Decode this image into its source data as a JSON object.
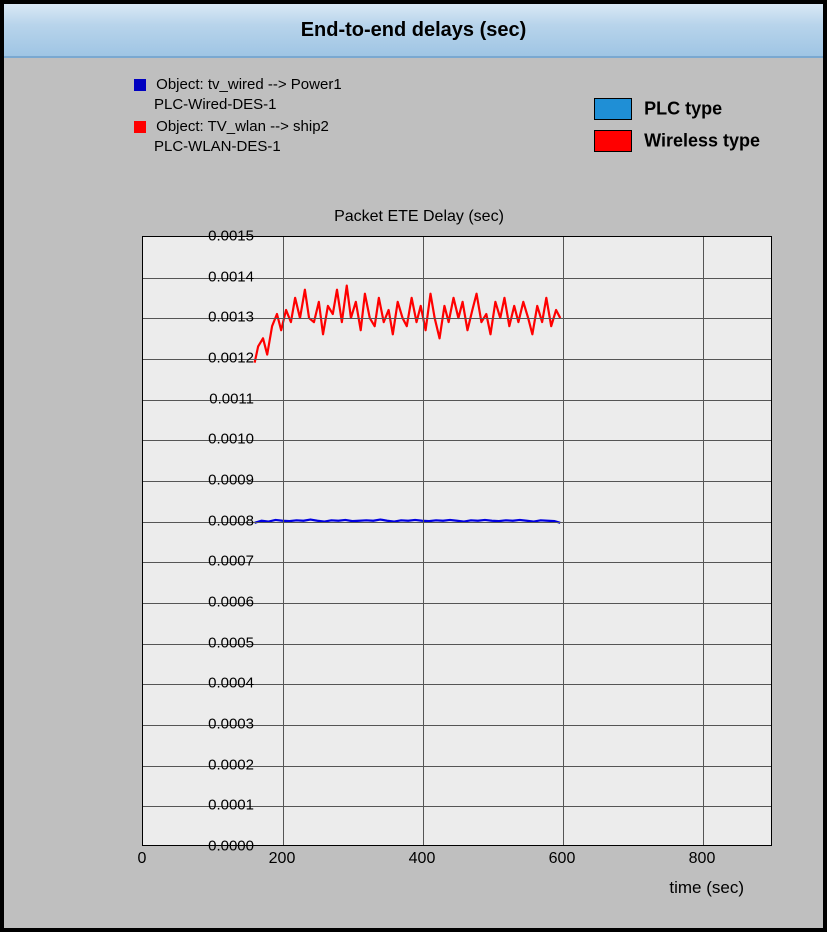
{
  "header": {
    "title": "End-to-end delays (sec)"
  },
  "legend": {
    "items": [
      {
        "marker_color": "#0000c0",
        "line1": "Object: tv_wired --> Power1",
        "line2": "PLC-Wired-DES-1"
      },
      {
        "marker_color": "#ff0000",
        "line1": "Object: TV_wlan --> ship2",
        "line2": "PLC-WLAN-DES-1"
      }
    ],
    "boxes": [
      {
        "color": "#1f8fd6",
        "label": "PLC type"
      },
      {
        "color": "#ff0000",
        "label": "Wireless type"
      }
    ]
  },
  "chart": {
    "title": "Packet ETE Delay (sec)",
    "x_axis_title": "time (sec)",
    "type": "line",
    "background_color": "#ececec",
    "grid_color": "#555555",
    "frame_bg": "#bfbfbf",
    "ylim": [
      0.0,
      0.0015
    ],
    "xlim": [
      0,
      900
    ],
    "yticks": [
      "0.0000",
      "0.0001",
      "0.0002",
      "0.0003",
      "0.0004",
      "0.0005",
      "0.0006",
      "0.0007",
      "0.0008",
      "0.0009",
      "0.0010",
      "0.0011",
      "0.0012",
      "0.0013",
      "0.0014",
      "0.0015"
    ],
    "xticks": [
      0,
      200,
      400,
      600,
      800
    ],
    "line_width": 2.2,
    "series": [
      {
        "name": "PLC-Wired-DES-1",
        "color": "#0000e0",
        "points": [
          [
            160,
            0.000795
          ],
          [
            170,
            0.0008
          ],
          [
            180,
            0.000798
          ],
          [
            190,
            0.000802
          ],
          [
            200,
            0.0008
          ],
          [
            210,
            0.000799
          ],
          [
            220,
            0.000801
          ],
          [
            230,
            0.0008
          ],
          [
            240,
            0.000803
          ],
          [
            250,
            0.0008
          ],
          [
            260,
            0.000798
          ],
          [
            270,
            0.000801
          ],
          [
            280,
            0.0008
          ],
          [
            290,
            0.000802
          ],
          [
            300,
            0.000799
          ],
          [
            310,
            0.0008
          ],
          [
            320,
            0.000801
          ],
          [
            330,
            0.0008
          ],
          [
            340,
            0.000803
          ],
          [
            350,
            0.0008
          ],
          [
            360,
            0.000798
          ],
          [
            370,
            0.000801
          ],
          [
            380,
            0.0008
          ],
          [
            390,
            0.000802
          ],
          [
            400,
            0.0008
          ],
          [
            410,
            0.000799
          ],
          [
            420,
            0.000801
          ],
          [
            430,
            0.0008
          ],
          [
            440,
            0.000802
          ],
          [
            450,
            0.0008
          ],
          [
            460,
            0.000798
          ],
          [
            470,
            0.000801
          ],
          [
            480,
            0.0008
          ],
          [
            490,
            0.000802
          ],
          [
            500,
            0.0008
          ],
          [
            510,
            0.000799
          ],
          [
            520,
            0.000801
          ],
          [
            530,
            0.0008
          ],
          [
            540,
            0.000802
          ],
          [
            550,
            0.0008
          ],
          [
            560,
            0.000798
          ],
          [
            570,
            0.000801
          ],
          [
            580,
            0.0008
          ],
          [
            590,
            0.000799
          ],
          [
            598,
            0.000795
          ]
        ]
      },
      {
        "name": "PLC-WLAN-DES-1",
        "color": "#ff0000",
        "points": [
          [
            160,
            0.00119
          ],
          [
            165,
            0.00123
          ],
          [
            172,
            0.00125
          ],
          [
            178,
            0.00121
          ],
          [
            185,
            0.00128
          ],
          [
            192,
            0.00131
          ],
          [
            198,
            0.00127
          ],
          [
            205,
            0.00132
          ],
          [
            212,
            0.00129
          ],
          [
            218,
            0.00135
          ],
          [
            225,
            0.0013
          ],
          [
            232,
            0.00137
          ],
          [
            238,
            0.0013
          ],
          [
            245,
            0.00129
          ],
          [
            252,
            0.00134
          ],
          [
            258,
            0.00126
          ],
          [
            265,
            0.00133
          ],
          [
            272,
            0.00131
          ],
          [
            278,
            0.00137
          ],
          [
            285,
            0.00129
          ],
          [
            292,
            0.00138
          ],
          [
            298,
            0.0013
          ],
          [
            305,
            0.00134
          ],
          [
            312,
            0.00127
          ],
          [
            318,
            0.00136
          ],
          [
            325,
            0.0013
          ],
          [
            332,
            0.00128
          ],
          [
            338,
            0.00135
          ],
          [
            345,
            0.00129
          ],
          [
            352,
            0.00132
          ],
          [
            358,
            0.00126
          ],
          [
            365,
            0.00134
          ],
          [
            372,
            0.0013
          ],
          [
            378,
            0.00128
          ],
          [
            385,
            0.00135
          ],
          [
            392,
            0.00129
          ],
          [
            398,
            0.00133
          ],
          [
            405,
            0.00127
          ],
          [
            412,
            0.00136
          ],
          [
            418,
            0.0013
          ],
          [
            425,
            0.00125
          ],
          [
            432,
            0.00133
          ],
          [
            438,
            0.00129
          ],
          [
            445,
            0.00135
          ],
          [
            452,
            0.0013
          ],
          [
            458,
            0.00134
          ],
          [
            465,
            0.00127
          ],
          [
            472,
            0.00132
          ],
          [
            478,
            0.00136
          ],
          [
            485,
            0.00129
          ],
          [
            492,
            0.00131
          ],
          [
            498,
            0.00126
          ],
          [
            505,
            0.00134
          ],
          [
            512,
            0.0013
          ],
          [
            518,
            0.00135
          ],
          [
            525,
            0.00128
          ],
          [
            532,
            0.00133
          ],
          [
            538,
            0.00129
          ],
          [
            545,
            0.00134
          ],
          [
            552,
            0.0013
          ],
          [
            558,
            0.00126
          ],
          [
            565,
            0.00133
          ],
          [
            572,
            0.00129
          ],
          [
            578,
            0.00135
          ],
          [
            585,
            0.00128
          ],
          [
            592,
            0.00132
          ],
          [
            598,
            0.0013
          ]
        ]
      }
    ]
  }
}
